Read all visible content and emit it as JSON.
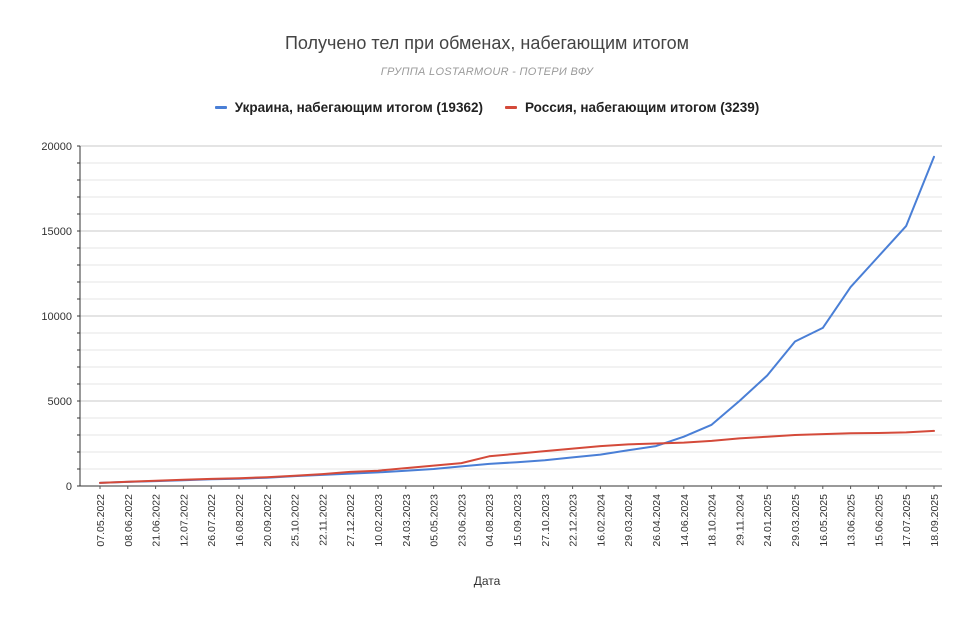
{
  "chart_data": {
    "type": "line",
    "title": "Получено тел при обменах, набегающим итогом",
    "subtitle": "ГРУППА LOSTARMOUR - ПОТЕРИ ВФУ",
    "xlabel": "Дата",
    "ylabel": "",
    "ylim": [
      0,
      20000
    ],
    "yticks": [
      0,
      5000,
      10000,
      15000,
      20000
    ],
    "grid": true,
    "legend_position": "top",
    "categories": [
      "07.05.2022",
      "08.06.2022",
      "21.06.2022",
      "12.07.2022",
      "26.07.2022",
      "16.08.2022",
      "20.09.2022",
      "25.10.2022",
      "22.11.2022",
      "27.12.2022",
      "10.02.2023",
      "24.03.2023",
      "05.05.2023",
      "23.06.2023",
      "04.08.2023",
      "15.09.2023",
      "27.10.2023",
      "22.12.2023",
      "16.02.2024",
      "29.03.2024",
      "26.04.2024",
      "14.06.2024",
      "18.10.2024",
      "29.11.2024",
      "24.01.2025",
      "29.03.2025",
      "16.05.2025",
      "13.06.2025",
      "15.06.2025",
      "17.07.2025",
      "18.09.2025"
    ],
    "series": [
      {
        "name": "Украина, набегающим итогом (19362)",
        "color": "#4a7fd6",
        "values": [
          180,
          240,
          290,
          340,
          400,
          430,
          490,
          580,
          650,
          730,
          800,
          900,
          1000,
          1150,
          1300,
          1400,
          1520,
          1680,
          1850,
          2100,
          2350,
          2900,
          3600,
          5000,
          6500,
          8500,
          9300,
          11700,
          13500,
          15300,
          19362
        ]
      },
      {
        "name": "Россия, набегающим итогом (3239)",
        "color": "#d44a3a",
        "values": [
          180,
          250,
          310,
          370,
          420,
          460,
          520,
          600,
          700,
          830,
          900,
          1050,
          1200,
          1350,
          1750,
          1900,
          2050,
          2200,
          2350,
          2450,
          2500,
          2550,
          2650,
          2800,
          2900,
          3000,
          3050,
          3100,
          3120,
          3150,
          3239
        ]
      }
    ]
  }
}
